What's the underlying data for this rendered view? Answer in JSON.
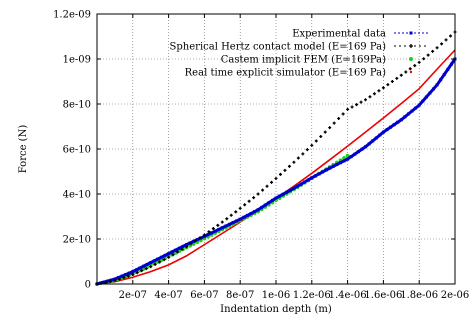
{
  "chart_data": {
    "type": "line",
    "xlabel": "Indentation depth (m)",
    "ylabel": "Force (N)",
    "xlim": [
      0,
      2e-06
    ],
    "ylim": [
      0,
      1.2e-09
    ],
    "xticks": [
      2e-07,
      4e-07,
      6e-07,
      8e-07,
      1e-06,
      1.2e-06,
      1.4e-06,
      1.6e-06,
      1.8e-06,
      2e-06
    ],
    "xtick_labels": [
      "2e-07",
      "4e-07",
      "6e-07",
      "8e-07",
      "1e-06",
      "1.2e-06",
      "1.4e-06",
      "1.6e-06",
      "1.8e-06",
      "2e-06"
    ],
    "yticks": [
      0,
      2e-10,
      4e-10,
      6e-10,
      8e-10,
      1e-09,
      1.2e-09
    ],
    "ytick_labels": [
      "0",
      "2e-10",
      "4e-10",
      "6e-10",
      "8e-10",
      "1e-09",
      "1.2e-09"
    ],
    "grid": true,
    "legend_position": "top-right",
    "series": [
      {
        "name": "Experimental data",
        "color": "#0000cc",
        "style": "dense-points-line",
        "points": [
          [
            0,
            0
          ],
          [
            1e-07,
            2.2e-11
          ],
          [
            2e-07,
            5.5e-11
          ],
          [
            3e-07,
            9.5e-11
          ],
          [
            4e-07,
            1.35e-10
          ],
          [
            5e-07,
            1.75e-10
          ],
          [
            6e-07,
            2.12e-10
          ],
          [
            7e-07,
            2.5e-10
          ],
          [
            8e-07,
            2.88e-10
          ],
          [
            9e-07,
            3.3e-10
          ],
          [
            1e-06,
            3.82e-10
          ],
          [
            1.1e-06,
            4.25e-10
          ],
          [
            1.2e-06,
            4.72e-10
          ],
          [
            1.3e-06,
            5.15e-10
          ],
          [
            1.4e-06,
            5.55e-10
          ],
          [
            1.5e-06,
            6.1e-10
          ],
          [
            1.6e-06,
            6.75e-10
          ],
          [
            1.7e-06,
            7.3e-10
          ],
          [
            1.8e-06,
            7.95e-10
          ],
          [
            1.9e-06,
            8.85e-10
          ],
          [
            2e-06,
            1e-09
          ]
        ]
      },
      {
        "name": "Spherical Hertz contact model (E=169 Pa)",
        "color": "#000000",
        "style": "dotted-points",
        "points": [
          [
            0,
            0
          ],
          [
            1e-07,
            1.5e-11
          ],
          [
            2e-07,
            4.2e-11
          ],
          [
            3e-07,
            7.7e-11
          ],
          [
            4e-07,
            1.19e-10
          ],
          [
            5e-07,
            1.66e-10
          ],
          [
            6e-07,
            2.18e-10
          ],
          [
            7e-07,
            2.75e-10
          ],
          [
            8e-07,
            3.36e-10
          ],
          [
            9e-07,
            4e-10
          ],
          [
            1e-06,
            4.69e-10
          ],
          [
            1.1e-06,
            5.41e-10
          ],
          [
            1.2e-06,
            6.16e-10
          ],
          [
            1.3e-06,
            6.95e-10
          ],
          [
            1.4e-06,
            7.76e-10
          ],
          [
            1.5e-06,
            8.19e-10
          ],
          [
            1.6e-06,
            8.72e-10
          ],
          [
            1.7e-06,
            9.28e-10
          ],
          [
            1.8e-06,
            9.85e-10
          ],
          [
            1.9e-06,
            1.05e-09
          ],
          [
            2e-06,
            1.12e-09
          ]
        ]
      },
      {
        "name": "Castem implicit FEM  (E=169Pa)",
        "color": "#22cc22",
        "style": "circles",
        "points": [
          [
            0,
            0
          ],
          [
            1e-07,
            1.6e-11
          ],
          [
            2e-07,
            4.5e-11
          ],
          [
            3e-07,
            8.2e-11
          ],
          [
            4e-07,
            1.22e-10
          ],
          [
            5e-07,
            1.62e-10
          ],
          [
            6e-07,
            2.02e-10
          ],
          [
            7e-07,
            2.42e-10
          ],
          [
            8e-07,
            2.82e-10
          ],
          [
            9e-07,
            3.22e-10
          ],
          [
            1e-06,
            3.72e-10
          ],
          [
            1.1e-06,
            4.2e-10
          ],
          [
            1.2e-06,
            4.7e-10
          ],
          [
            1.3e-06,
            5.2e-10
          ],
          [
            1.4e-06,
            5.7e-10
          ]
        ]
      },
      {
        "name": "Real time explicit simulator (E=169 Pa)",
        "color": "#ee0000",
        "style": "line",
        "points": [
          [
            0,
            0
          ],
          [
            1e-07,
            1e-11
          ],
          [
            2e-07,
            3e-11
          ],
          [
            3e-07,
            5.5e-11
          ],
          [
            4e-07,
            8.5e-11
          ],
          [
            5e-07,
            1.25e-10
          ],
          [
            6e-07,
            1.75e-10
          ],
          [
            7e-07,
            2.25e-10
          ],
          [
            8e-07,
            2.75e-10
          ],
          [
            9e-07,
            3.27e-10
          ],
          [
            1e-06,
            3.8e-10
          ],
          [
            1.1e-06,
            4.35e-10
          ],
          [
            1.2e-06,
            4.92e-10
          ],
          [
            1.3e-06,
            5.52e-10
          ],
          [
            1.4e-06,
            6.13e-10
          ],
          [
            1.5e-06,
            6.75e-10
          ],
          [
            1.6e-06,
            7.38e-10
          ],
          [
            1.7e-06,
            8.02e-10
          ],
          [
            1.8e-06,
            8.68e-10
          ],
          [
            1.9e-06,
            9.55e-10
          ],
          [
            2e-06,
            1.04e-09
          ]
        ]
      }
    ]
  }
}
